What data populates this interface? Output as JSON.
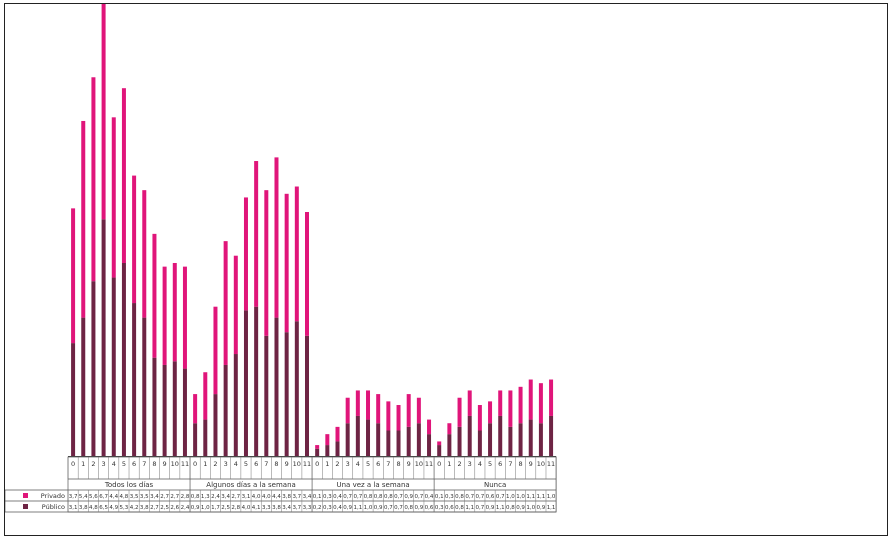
{
  "chart_data": {
    "type": "bar",
    "stacked": true,
    "groups": [
      {
        "label": "Todos los días",
        "categories": [
          "0",
          "1",
          "2",
          "3",
          "4",
          "5",
          "6",
          "7",
          "8",
          "9",
          "10",
          "11"
        ]
      },
      {
        "label": "Algunos días a la semana",
        "categories": [
          "0",
          "1",
          "2",
          "3",
          "4",
          "5",
          "6",
          "7",
          "8",
          "9",
          "10",
          "11"
        ]
      },
      {
        "label": "Una vez a la semana",
        "categories": [
          "0",
          "1",
          "2",
          "3",
          "4",
          "5",
          "6",
          "7",
          "8",
          "9",
          "10",
          "11"
        ]
      },
      {
        "label": "Nunca",
        "categories": [
          "0",
          "1",
          "2",
          "3",
          "4",
          "5",
          "6",
          "7",
          "8",
          "9",
          "10",
          "11"
        ]
      }
    ],
    "series": [
      {
        "name": "Privado",
        "color": "#e0157a",
        "values": [
          [
            3.7,
            5.4,
            5.6,
            6.7,
            4.4,
            4.8,
            3.5,
            3.5,
            3.4,
            2.7,
            2.7,
            2.8
          ],
          [
            0.8,
            1.3,
            2.4,
            3.4,
            2.7,
            3.1,
            4.0,
            4.0,
            4.4,
            3.8,
            3.7,
            3.4
          ],
          [
            0.1,
            0.3,
            0.4,
            0.7,
            0.7,
            0.8,
            0.8,
            0.8,
            0.7,
            0.9,
            0.7,
            0.4
          ],
          [
            0.1,
            0.3,
            0.8,
            0.7,
            0.7,
            0.6,
            0.7,
            1.0,
            1.0,
            1.1,
            1.1,
            1.0
          ]
        ],
        "value_labels": [
          [
            "3,7",
            "5,4",
            "5,6",
            "6,7",
            "4,4",
            "4,8",
            "3,5",
            "3,5",
            "3,4",
            "2,7",
            "2,7",
            "2,8"
          ],
          [
            "0,8",
            "1,3",
            "2,4",
            "3,4",
            "2,7",
            "3,1",
            "4,0",
            "4,0",
            "4,4",
            "3,8",
            "3,7",
            "3,4"
          ],
          [
            "0,1",
            "0,3",
            "0,4",
            "0,7",
            "0,7",
            "0,8",
            "0,8",
            "0,8",
            "0,7",
            "0,9",
            "0,7",
            "0,4"
          ],
          [
            "0,1",
            "0,3",
            "0,8",
            "0,7",
            "0,7",
            "0,6",
            "0,7",
            "1,0",
            "1,0",
            "1,1",
            "1,1",
            "1,0"
          ]
        ]
      },
      {
        "name": "Público",
        "color": "#6e2444",
        "values": [
          [
            3.1,
            3.8,
            4.8,
            6.5,
            4.9,
            5.3,
            4.2,
            3.8,
            2.7,
            2.5,
            2.6,
            2.4
          ],
          [
            0.9,
            1.0,
            1.7,
            2.5,
            2.8,
            4.0,
            4.1,
            3.3,
            3.8,
            3.4,
            3.7,
            3.3
          ],
          [
            0.2,
            0.3,
            0.4,
            0.9,
            1.1,
            1.0,
            0.9,
            0.7,
            0.7,
            0.8,
            0.9,
            0.6
          ],
          [
            0.3,
            0.6,
            0.8,
            1.1,
            0.7,
            0.9,
            1.1,
            0.8,
            0.9,
            1.0,
            0.9,
            1.1
          ]
        ],
        "value_labels": [
          [
            "3,1",
            "3,8",
            "4,8",
            "6,5",
            "4,9",
            "5,3",
            "4,2",
            "3,8",
            "2,7",
            "2,5",
            "2,6",
            "2,4"
          ],
          [
            "0,9",
            "1,0",
            "1,7",
            "2,5",
            "2,8",
            "4,0",
            "4,1",
            "3,3",
            "3,8",
            "3,4",
            "3,7",
            "3,3"
          ],
          [
            "0,2",
            "0,3",
            "0,4",
            "0,9",
            "1,1",
            "1,0",
            "0,9",
            "0,7",
            "0,7",
            "0,8",
            "0,9",
            "0,6"
          ],
          [
            "0,3",
            "0,6",
            "0,8",
            "1,1",
            "0,7",
            "0,9",
            "1,1",
            "0,8",
            "0,9",
            "1,0",
            "0,9",
            "1,1"
          ]
        ]
      }
    ],
    "ylim": [
      0,
      12
    ],
    "grid": false,
    "legend_placement": "table-left"
  }
}
